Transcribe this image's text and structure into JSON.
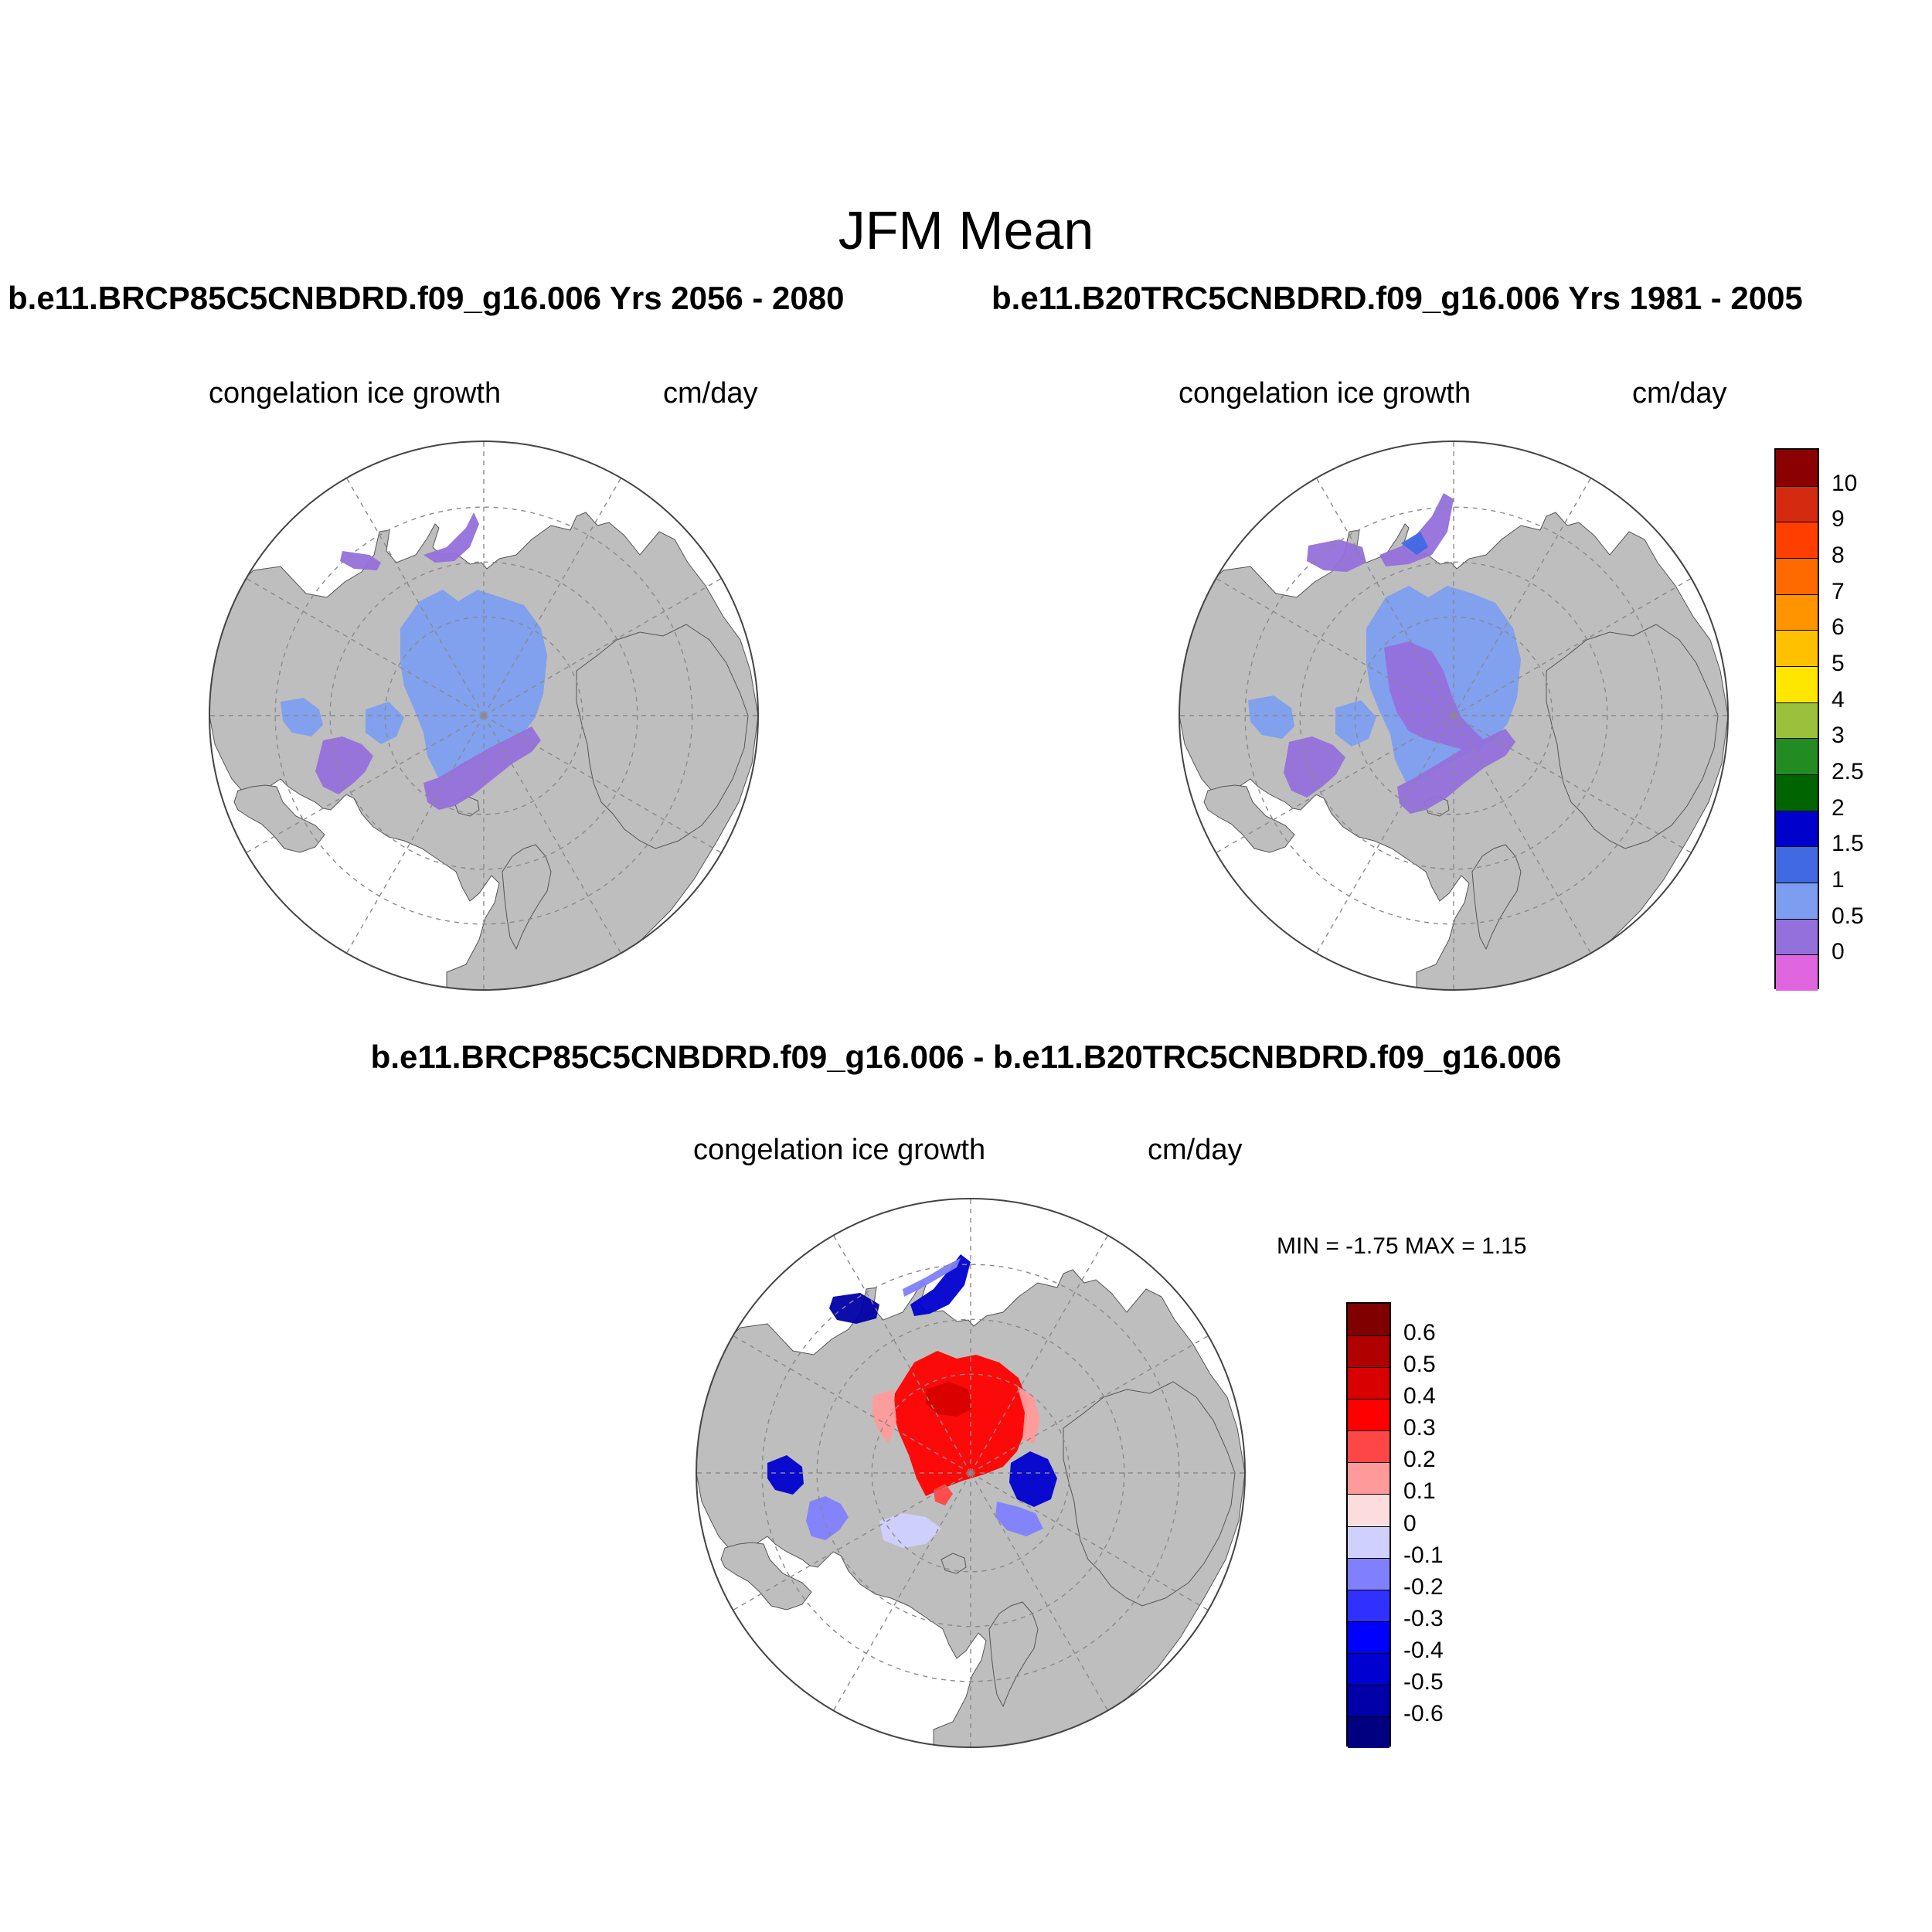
{
  "title": "JFM Mean",
  "panels": [
    {
      "id": "future",
      "run_title": "b.e11.BRCP85C5CNBDRD.f09_g16.006  Yrs 2056 - 2080",
      "variable": "congelation ice growth",
      "units": "cm/day",
      "field": "future"
    },
    {
      "id": "historical",
      "run_title": "b.e11.B20TRC5CNBDRD.f09_g16.006  Yrs 1981 - 2005",
      "variable": "congelation ice growth",
      "units": "cm/day",
      "field": "historical"
    }
  ],
  "difference": {
    "title": "b.e11.BRCP85C5CNBDRD.f09_g16.006 - b.e11.B20TRC5CNBDRD.f09_g16.006",
    "variable": "congelation ice growth",
    "units": "cm/day",
    "minmax": "MIN =  -1.75 MAX =   1.15"
  },
  "colorbars": {
    "mean": {
      "labels": [
        "10",
        "9",
        "8",
        "7",
        "6",
        "5",
        "4",
        "3",
        "2.5",
        "2",
        "1.5",
        "1",
        "0.5",
        "0"
      ],
      "colors": [
        "#8b0000",
        "#d42a10",
        "#ff3e00",
        "#ff6a00",
        "#ff9300",
        "#ffc000",
        "#ffe600",
        "#9bc13c",
        "#228b22",
        "#006400",
        "#0000cd",
        "#4169e1",
        "#7d9ef0",
        "#9370db",
        "#e066e0"
      ]
    },
    "diff": {
      "labels": [
        "0.6",
        "0.5",
        "0.4",
        "0.3",
        "0.2",
        "0.1",
        "0",
        "-0.1",
        "-0.2",
        "-0.3",
        "-0.4",
        "-0.5",
        "-0.6"
      ],
      "colors": [
        "#800000",
        "#b00000",
        "#d80000",
        "#ff0000",
        "#ff4646",
        "#ff9a9a",
        "#fcdcdc",
        "#d0d0ff",
        "#8080ff",
        "#3030ff",
        "#0000ff",
        "#0000d0",
        "#0000a8",
        "#000080"
      ]
    }
  },
  "colors": {
    "land": "#bebebe",
    "ocean": "#ffffff",
    "grid": "#8a8a8a"
  }
}
